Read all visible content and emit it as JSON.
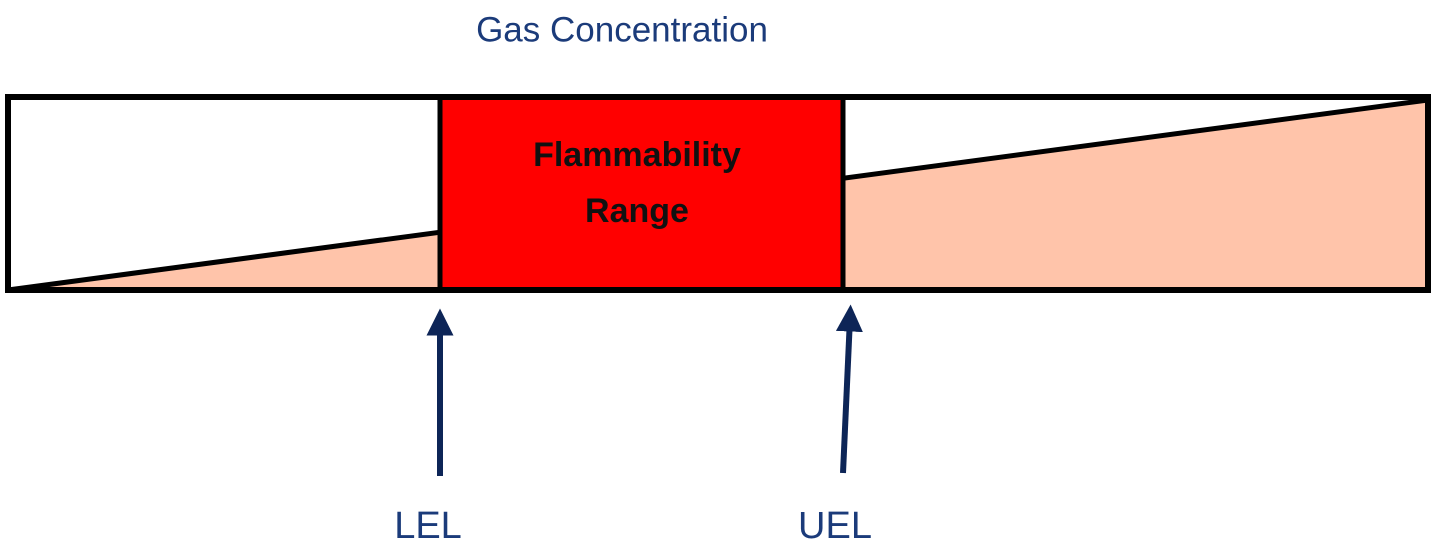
{
  "title": "Gas Concentration",
  "range_label": {
    "lines": [
      "Flammability",
      "Range"
    ]
  },
  "markers": [
    {
      "label": "LEL"
    },
    {
      "label": "UEL"
    }
  ]
}
